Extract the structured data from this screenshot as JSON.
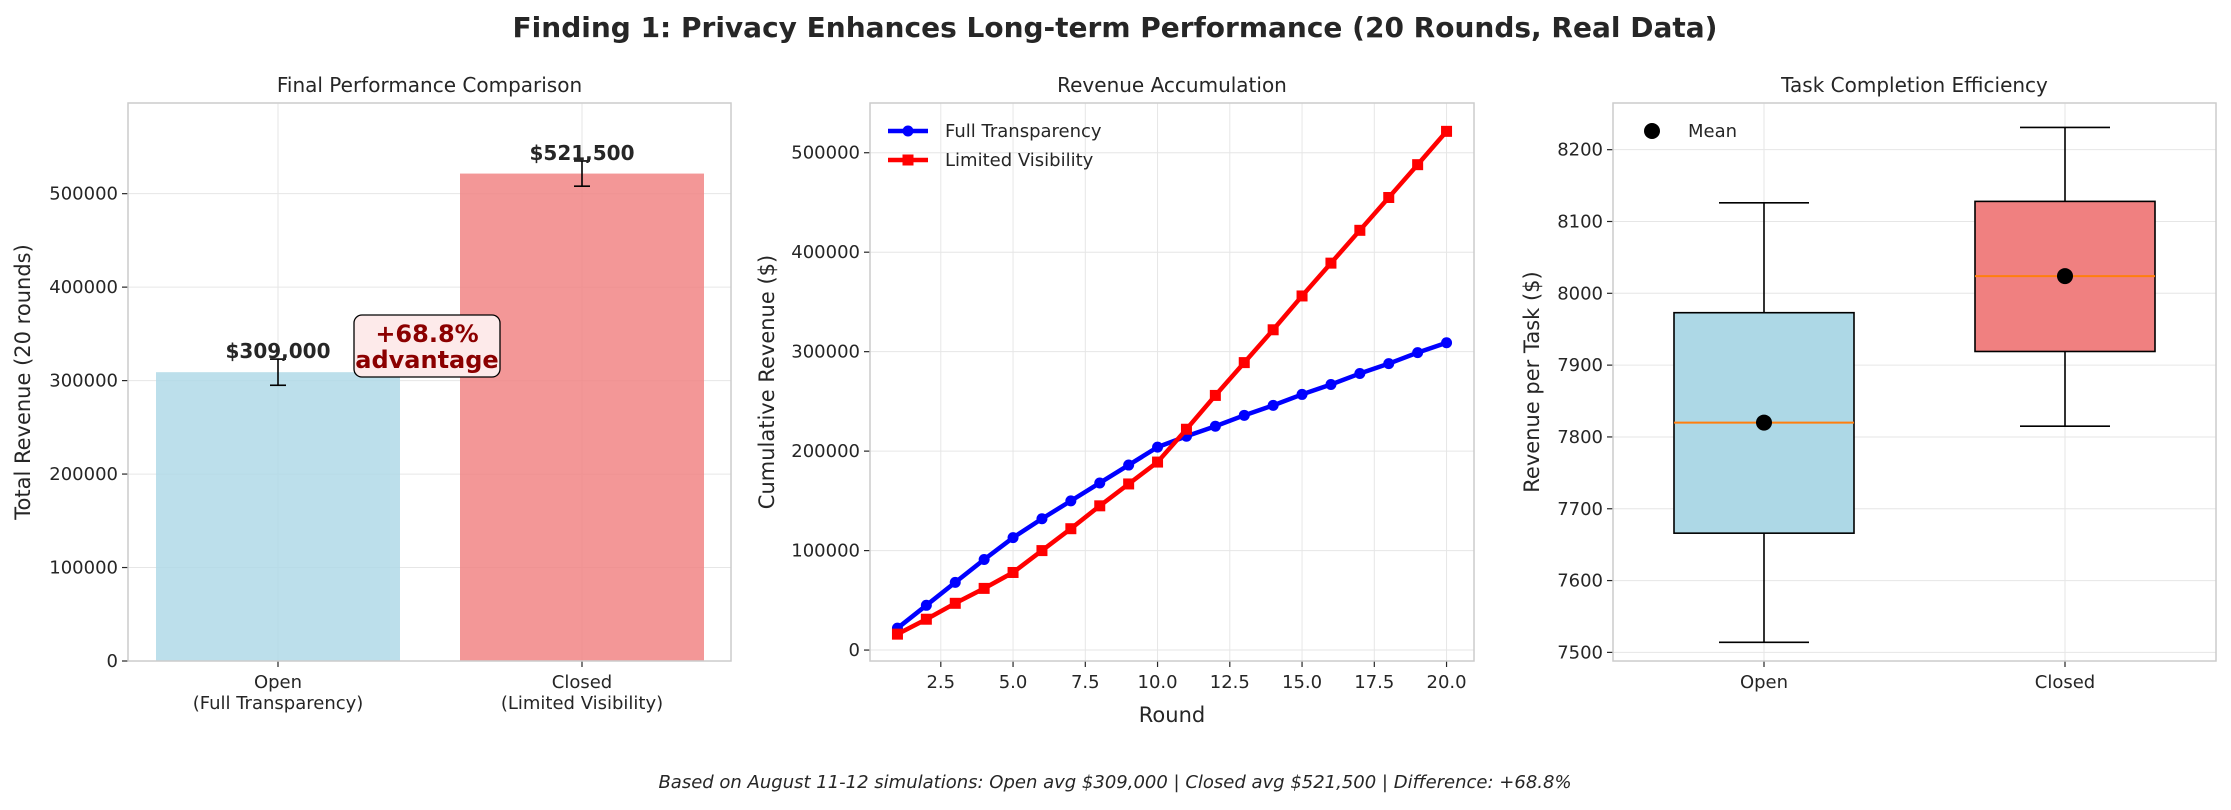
{
  "suptitle": "Finding 1: Privacy Enhances Long-term Performance (20 Rounds, Real Data)",
  "footer": "Based on August 11-12 simulations: Open avg $309,000 | Closed avg $521,500 | Difference: +68.8%",
  "colors": {
    "open": "#add8e6",
    "closed": "#f08080",
    "full_line": "#0000ff",
    "limited_line": "#ff0000",
    "median": "#ff7f0e",
    "annotation_text": "#8b0000"
  },
  "chart_data": [
    {
      "type": "bar",
      "title": "Final Performance Comparison",
      "categories": [
        "Open\n(Full Transparency)",
        "Closed\n(Limited Visibility)"
      ],
      "category_lines": [
        [
          "Open",
          "(Full Transparency)"
        ],
        [
          "Closed",
          "(Limited Visibility)"
        ]
      ],
      "values": [
        309000,
        521500
      ],
      "errors": [
        14000,
        13500
      ],
      "data_labels": [
        "$309,000",
        "$521,500"
      ],
      "ylabel": "Total Revenue (20 rounds)",
      "ylim": [
        0,
        597000
      ],
      "yticks": [
        0,
        100000,
        200000,
        300000,
        400000,
        500000
      ],
      "annotation": [
        "+68.8%",
        "advantage"
      ],
      "grid": true
    },
    {
      "type": "line",
      "title": "Revenue Accumulation",
      "xlabel": "Round",
      "ylabel": "Cumulative Revenue ($)",
      "xlim": [
        0.05,
        20.95
      ],
      "ylim": [
        -11000,
        550000
      ],
      "xticks": [
        2.5,
        5.0,
        7.5,
        10.0,
        12.5,
        15.0,
        17.5,
        20.0
      ],
      "xtick_labels": [
        "2.5",
        "5.0",
        "7.5",
        "10.0",
        "12.5",
        "15.0",
        "17.5",
        "20.0"
      ],
      "yticks": [
        0,
        100000,
        200000,
        300000,
        400000,
        500000
      ],
      "x": [
        1,
        2,
        3,
        4,
        5,
        6,
        7,
        8,
        9,
        10,
        11,
        12,
        13,
        14,
        15,
        16,
        17,
        18,
        19,
        20
      ],
      "series": [
        {
          "name": "Full Transparency",
          "marker": "circle",
          "values": [
            22000,
            45000,
            68000,
            91000,
            113000,
            132000,
            150000,
            168000,
            186000,
            204000,
            215000,
            225000,
            236000,
            246000,
            257000,
            267000,
            278000,
            288000,
            299000,
            309000
          ]
        },
        {
          "name": "Limited Visibility",
          "marker": "square",
          "values": [
            16000,
            31000,
            47000,
            62000,
            78000,
            100000,
            122000,
            145000,
            167000,
            189000,
            222000,
            256000,
            289000,
            322000,
            356000,
            389000,
            422000,
            455000,
            488000,
            521500
          ]
        }
      ],
      "legend_position": "upper-left",
      "grid": true
    },
    {
      "type": "box",
      "title": "Task Completion Efficiency",
      "ylabel": "Revenue per Task ($)",
      "categories": [
        "Open",
        "Closed"
      ],
      "ylim": [
        7488,
        8265
      ],
      "yticks": [
        7500,
        7600,
        7700,
        7800,
        7900,
        8000,
        8100,
        8200
      ],
      "boxes": [
        {
          "whisker_low": 7514,
          "q1": 7666,
          "median": 7820,
          "q3": 7973,
          "whisker_high": 8126,
          "mean": 7820
        },
        {
          "whisker_low": 7815,
          "q1": 7919,
          "median": 8024,
          "q3": 8128,
          "whisker_high": 8231,
          "mean": 8024
        }
      ],
      "legend": [
        "Mean"
      ],
      "legend_position": "upper-left",
      "grid": true
    }
  ]
}
